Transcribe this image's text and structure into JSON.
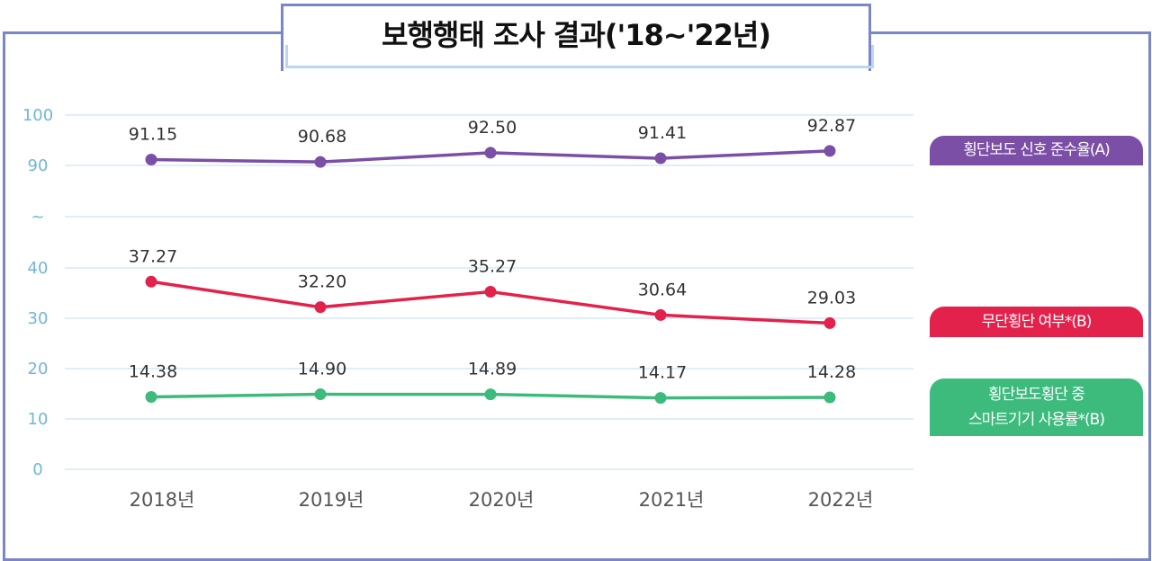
{
  "title": "보행행태 조사 결과('18~'22년)",
  "chart_data": {
    "type": "line",
    "title": "보행행태 조사 결과('18~'22년)",
    "categories": [
      "2018년",
      "2019년",
      "2020년",
      "2021년",
      "2022년"
    ],
    "y_ticks": [
      "100",
      "90",
      "~",
      "40",
      "30",
      "20",
      "10",
      "0"
    ],
    "y_axis_note": "broken axis between 40 and 90",
    "grid": true,
    "legend_placement": "right",
    "series": [
      {
        "name": "횡단보도 신호 준수율(A)",
        "color": "#7b4fa6",
        "values": [
          91.15,
          90.68,
          92.5,
          91.41,
          92.87
        ],
        "labels": [
          "91.15",
          "90.68",
          "92.50",
          "91.41",
          "92.87"
        ]
      },
      {
        "name": "무단횡단 여부*(B)",
        "color": "#e3224c",
        "values": [
          37.27,
          32.2,
          35.27,
          30.64,
          29.03
        ],
        "labels": [
          "37.27",
          "32.20",
          "35.27",
          "30.64",
          "29.03"
        ]
      },
      {
        "name": "횡단보도횡단 중 스마트기기 사용률*(B)",
        "name_lines": [
          "횡단보도횡단 중",
          "스마트기기 사용률*(B)"
        ],
        "color": "#3dbb7d",
        "values": [
          14.38,
          14.9,
          14.89,
          14.17,
          14.28
        ],
        "labels": [
          "14.38",
          "14.90",
          "14.89",
          "14.17",
          "14.28"
        ]
      }
    ]
  }
}
